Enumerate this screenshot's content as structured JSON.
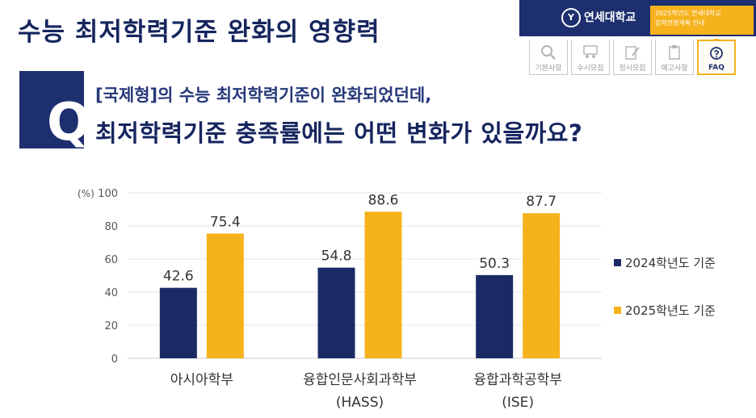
{
  "header": {
    "title": "수능 최저학력기준 완화의 영향력",
    "university": "연세대학교",
    "subtitle_line1": "2025학년도 연세대학교",
    "subtitle_line2": "입학전형계획 안내",
    "tabs": [
      {
        "label": "기본사항",
        "icon": "magnifier-icon",
        "active": false
      },
      {
        "label": "수시모집",
        "icon": "people-board-icon",
        "active": false
      },
      {
        "label": "정시모집",
        "icon": "pencil-paper-icon",
        "active": false
      },
      {
        "label": "예고사항",
        "icon": "clipboard-icon",
        "active": false
      },
      {
        "label": "FAQ",
        "icon": "question-bubble-icon",
        "active": true
      }
    ]
  },
  "question": {
    "letter": "Q",
    "line1": "[국제형]의 수능 최저학력기준이 완화되었던데,",
    "line2": "최저학력기준 충족률에는 어떤 변화가 있을까요?"
  },
  "chart_data": {
    "type": "bar",
    "unit_label": "(%)",
    "categories": [
      [
        "아시아학부"
      ],
      [
        "융합인문사회과학부",
        "(HASS)"
      ],
      [
        "융합과학공학부",
        "(ISE)"
      ]
    ],
    "series": [
      {
        "name": "2024학년도 기준",
        "color": "#1b2a67",
        "values": [
          42.6,
          54.8,
          50.3
        ]
      },
      {
        "name": "2025학년도 기준",
        "color": "#f6b21b",
        "values": [
          75.4,
          88.6,
          87.7
        ]
      }
    ],
    "ylim": [
      0,
      100
    ],
    "yticks": [
      0,
      20,
      40,
      60,
      80,
      100
    ],
    "grid": true,
    "legend_position": "right"
  }
}
